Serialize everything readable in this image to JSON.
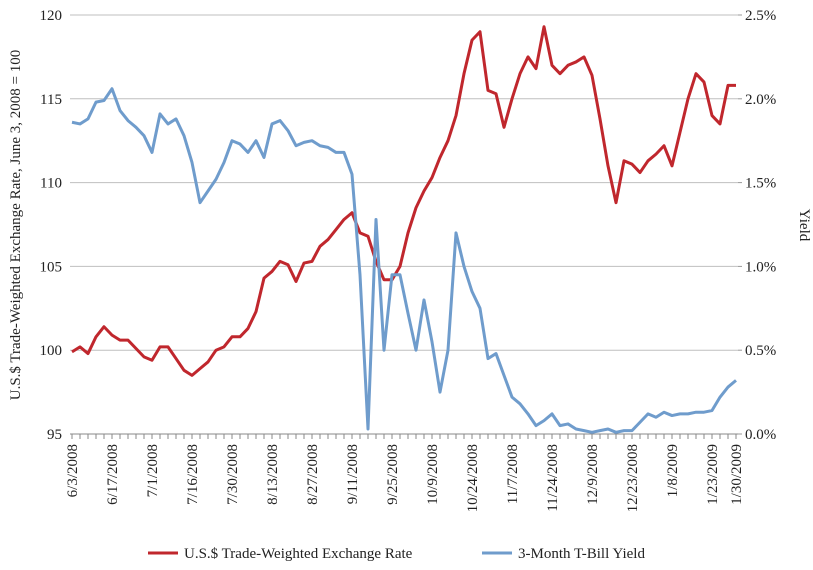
{
  "chart_data": {
    "type": "line",
    "y_axis_label": "U.S.$ Trade-Weighted Exchange Rate, June 3, 2008 = 100",
    "y2_axis_label": "Yield",
    "categories": [
      "6/3/2008",
      null,
      null,
      null,
      null,
      "6/17/2008",
      null,
      null,
      null,
      null,
      "7/1/2008",
      null,
      null,
      null,
      null,
      "7/16/2008",
      null,
      null,
      null,
      null,
      "7/30/2008",
      null,
      null,
      null,
      null,
      "8/13/2008",
      null,
      null,
      null,
      null,
      "8/27/2008",
      null,
      null,
      null,
      null,
      "9/11/2008",
      null,
      null,
      null,
      null,
      "9/25/2008",
      null,
      null,
      null,
      null,
      "10/9/2008",
      null,
      null,
      null,
      null,
      "10/24/2008",
      null,
      null,
      null,
      null,
      "11/7/2008",
      null,
      null,
      null,
      null,
      "11/24/2008",
      null,
      null,
      null,
      null,
      "12/9/2008",
      null,
      null,
      null,
      null,
      "12/23/2008",
      null,
      null,
      null,
      null,
      "1/8/2009",
      null,
      null,
      null,
      null,
      "1/23/2009",
      null,
      null,
      "1/30/2009"
    ],
    "series": [
      {
        "name": "U.S.$ Trade-Weighted Exchange Rate",
        "color": "#c0272d",
        "axis": "y",
        "values": [
          99.9,
          100.2,
          99.8,
          100.8,
          101.4,
          100.9,
          100.6,
          100.6,
          100.1,
          99.6,
          99.4,
          100.2,
          100.2,
          99.5,
          98.8,
          98.5,
          98.9,
          99.3,
          100.0,
          100.2,
          100.8,
          100.8,
          101.3,
          102.3,
          104.3,
          104.7,
          105.3,
          105.1,
          104.1,
          105.2,
          105.3,
          106.2,
          106.6,
          107.2,
          107.8,
          108.2,
          107,
          106.8,
          105.3,
          104.2,
          104.2,
          105,
          107,
          108.5,
          109.5,
          110.3,
          111.5,
          112.5,
          114,
          116.5,
          118.5,
          119,
          115.5,
          115.3,
          113.3,
          115,
          116.5,
          117.5,
          116.8,
          119.3,
          117,
          116.5,
          117,
          117.2,
          117.5,
          116.4,
          113.8,
          111,
          108.8,
          111.3,
          111.1,
          110.6,
          111.3,
          111.7,
          112.2,
          111,
          113,
          115,
          116.5,
          116,
          114,
          113.5,
          115.8,
          115.8
        ]
      },
      {
        "name": "3-Month T-Bill Yield",
        "color": "#6f9ccc",
        "axis": "y2",
        "values": [
          1.86,
          1.85,
          1.88,
          1.98,
          1.99,
          2.06,
          1.93,
          1.87,
          1.83,
          1.78,
          1.68,
          1.91,
          1.85,
          1.88,
          1.78,
          1.62,
          1.38,
          1.45,
          1.52,
          1.62,
          1.75,
          1.73,
          1.68,
          1.75,
          1.65,
          1.85,
          1.87,
          1.81,
          1.72,
          1.74,
          1.75,
          1.72,
          1.71,
          1.68,
          1.68,
          1.55,
          0.95,
          0.03,
          1.28,
          0.5,
          0.95,
          0.95,
          0.72,
          0.5,
          0.8,
          0.55,
          0.25,
          0.5,
          1.2,
          1.0,
          0.85,
          0.75,
          0.45,
          0.48,
          0.35,
          0.22,
          0.18,
          0.12,
          0.05,
          0.08,
          0.12,
          0.05,
          0.06,
          0.03,
          0.02,
          0.01,
          0.02,
          0.03,
          0.01,
          0.02,
          0.02,
          0.07,
          0.12,
          0.1,
          0.13,
          0.11,
          0.12,
          0.12,
          0.13,
          0.13,
          0.14,
          0.22,
          0.28,
          0.32
        ]
      }
    ],
    "ylim": [
      95,
      120
    ],
    "yticks": [
      95,
      100,
      105,
      110,
      115,
      120
    ],
    "y2lim": [
      0,
      2.5
    ],
    "y2ticks": [
      {
        "value": 0,
        "label": "0.0%"
      },
      {
        "value": 0.5,
        "label": "0.5%"
      },
      {
        "value": 1,
        "label": "1.0%"
      },
      {
        "value": 1.5,
        "label": "1.5%"
      },
      {
        "value": 2,
        "label": "2.0%"
      },
      {
        "value": 2.5,
        "label": "2.5%"
      }
    ],
    "grid": true,
    "legend": "bottom"
  }
}
